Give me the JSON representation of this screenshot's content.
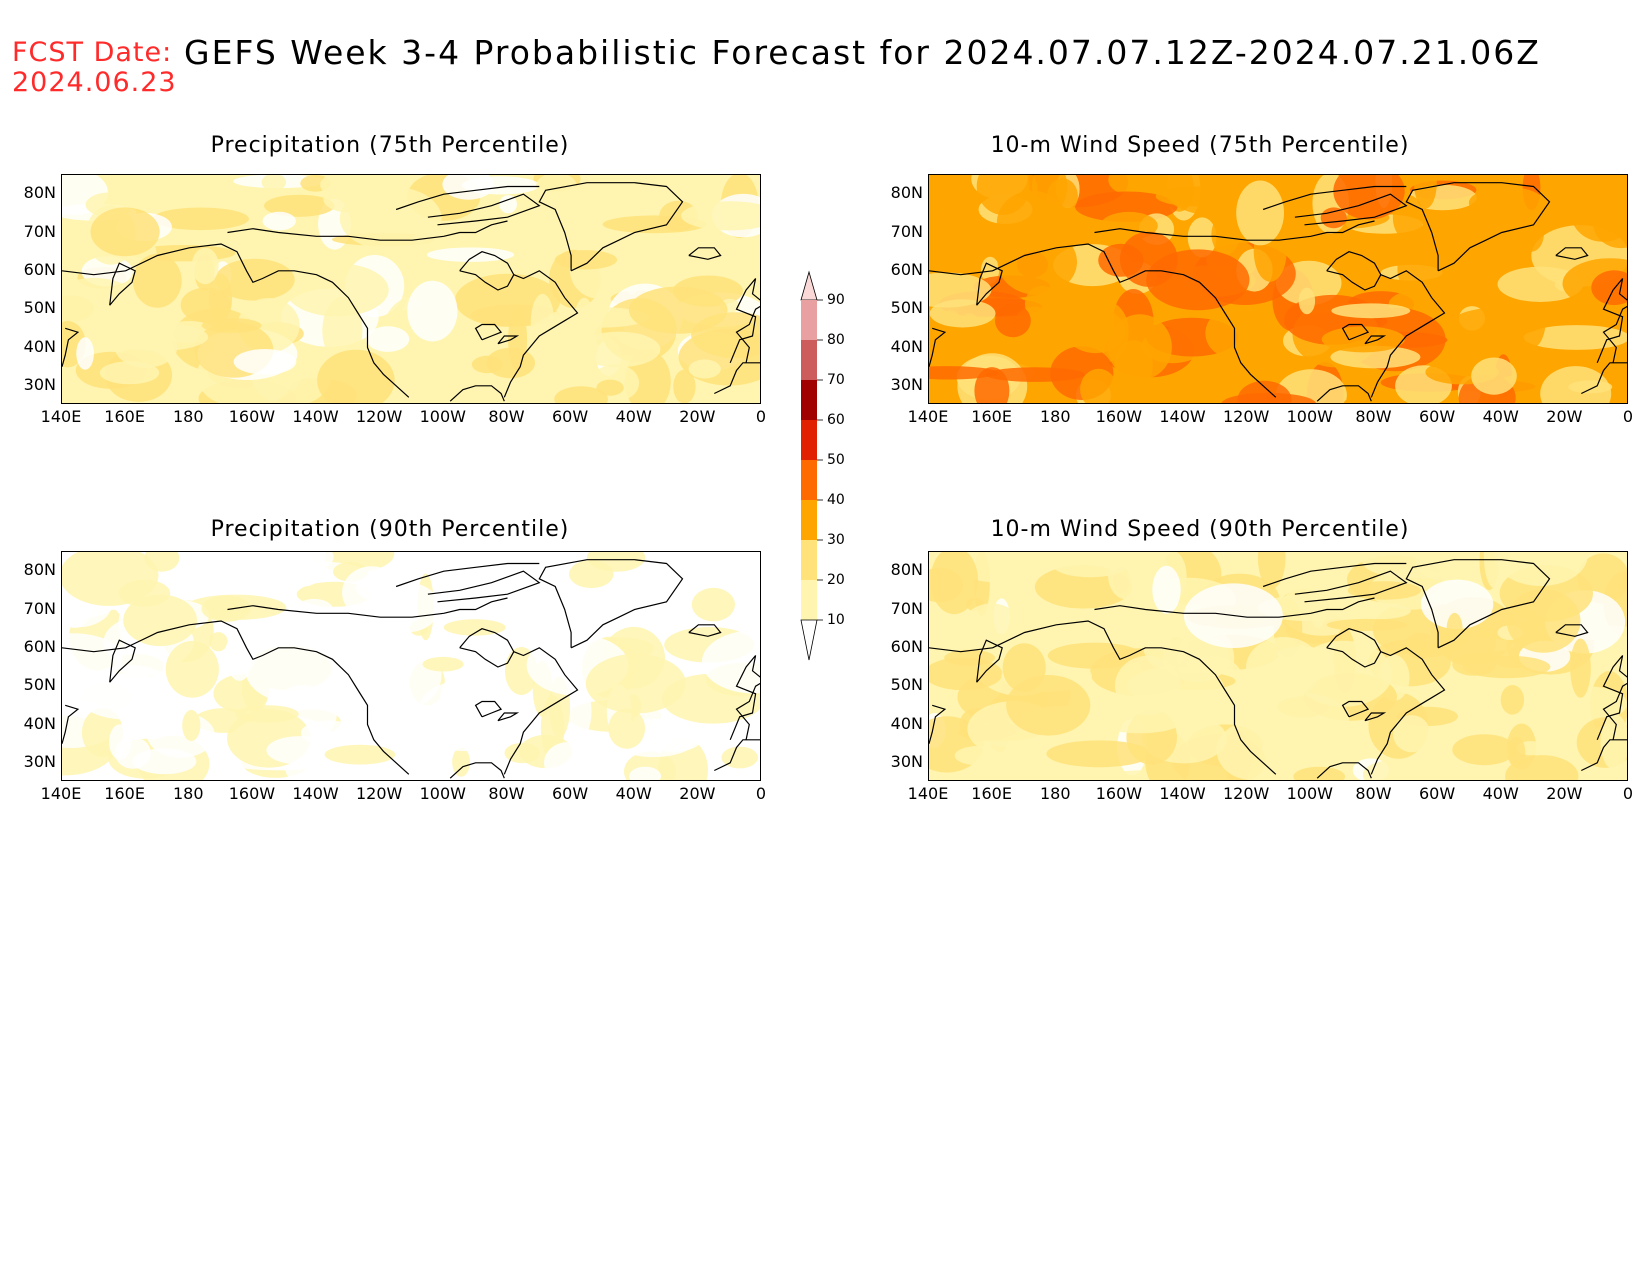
{
  "header": {
    "fcst_label": "FCST Date:",
    "fcst_date": "2024.06.23",
    "title": "GEFS Week 3-4 Probabilistic Forecast for 2024.07.07.12Z-2024.07.21.06Z"
  },
  "panels": [
    {
      "id": "precip75",
      "title": "Precipitation (75th Percentile)",
      "level_bias": 1.2
    },
    {
      "id": "wind75",
      "title": "10-m Wind Speed (75th Percentile)",
      "level_bias": 3.0
    },
    {
      "id": "precip90",
      "title": "Precipitation (90th Percentile)",
      "level_bias": 0.35
    },
    {
      "id": "wind90",
      "title": "10-m Wind Speed (90th Percentile)",
      "level_bias": 1.4
    }
  ],
  "axes": {
    "lat_labels": [
      "80N",
      "70N",
      "60N",
      "50N",
      "40N",
      "30N"
    ],
    "lon_labels": [
      "140E",
      "160E",
      "180",
      "160W",
      "140W",
      "120W",
      "100W",
      "80W",
      "60W",
      "40W",
      "20W",
      "0"
    ],
    "lat_range": [
      25,
      85
    ],
    "lon_range_deg_east": [
      140,
      360
    ]
  },
  "colorbar": {
    "levels": [
      10,
      20,
      30,
      40,
      50,
      60,
      70,
      80,
      90
    ],
    "labels": [
      "10",
      "20",
      "30",
      "40",
      "50",
      "60",
      "70",
      "80",
      "90"
    ],
    "colors": [
      "#ffffff",
      "#fff5b0",
      "#ffe27a",
      "#ffa500",
      "#ff6a00",
      "#e02000",
      "#a00000",
      "#cd5c5c",
      "#e8a0a0",
      "#fad8d8"
    ]
  }
}
